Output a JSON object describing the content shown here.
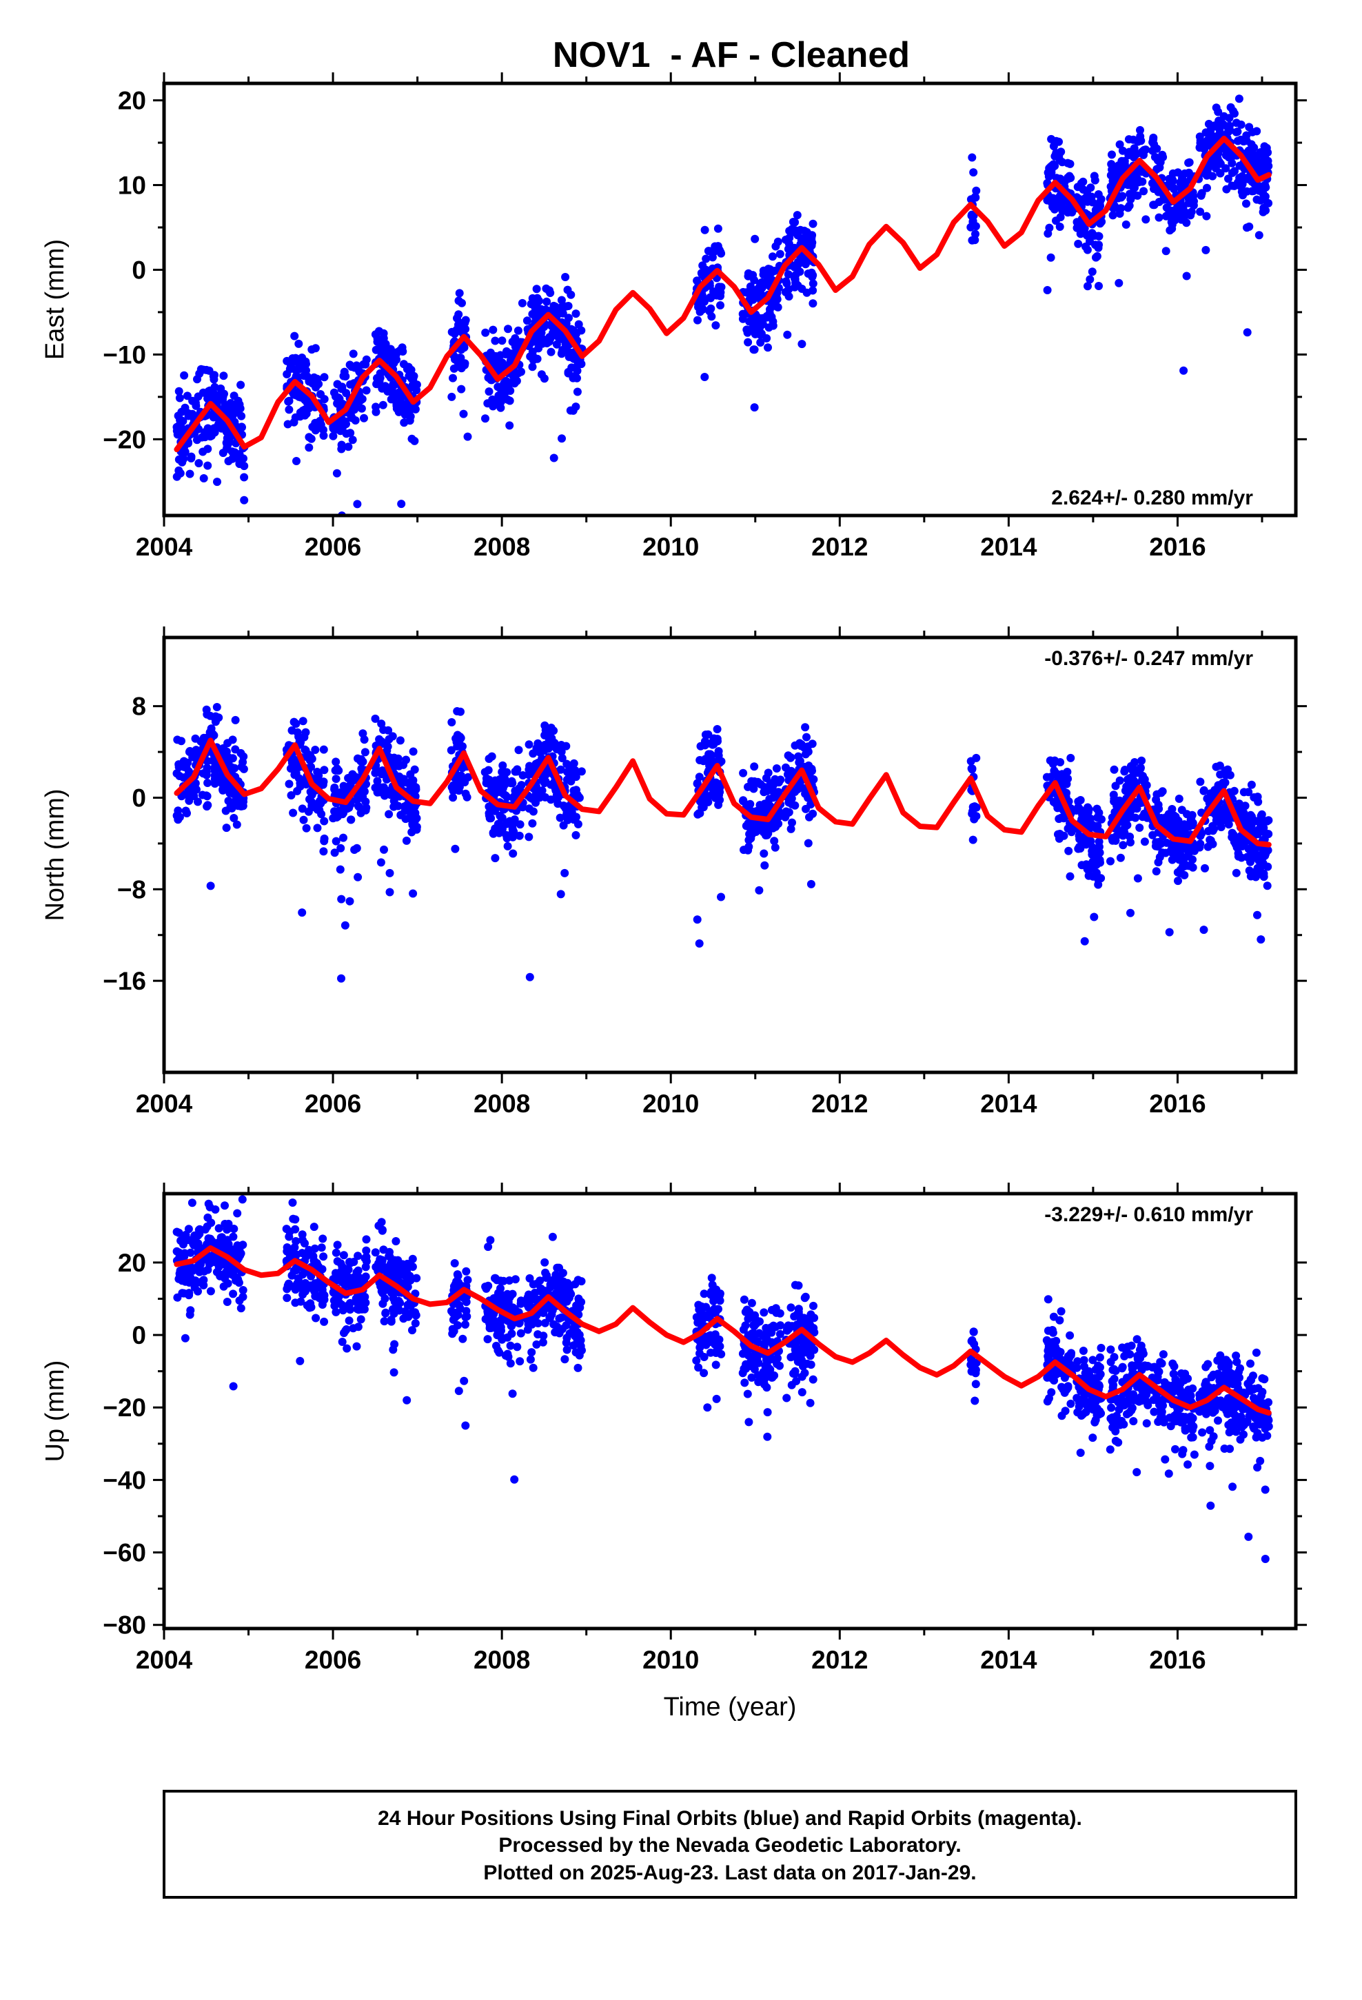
{
  "page_title": "NOV1  - AF - Cleaned",
  "chart_data": [
    {
      "type": "scatter",
      "panel": "east",
      "ylabel": "East (mm)",
      "xlabel": "",
      "xlim": [
        2004.0,
        2017.4
      ],
      "ylim": [
        -29,
        22
      ],
      "xticks": [
        2004,
        2006,
        2008,
        2010,
        2012,
        2014,
        2016
      ],
      "xtick_labels": [
        "2004",
        "2006",
        "2008",
        "2010",
        "2012",
        "2014",
        "2016"
      ],
      "yticks": [
        20,
        10,
        0,
        -10,
        -20
      ],
      "ytick_labels": [
        "20",
        "10",
        "0",
        "−10",
        "−20"
      ],
      "rate_text": "2.624+/- 0.280 mm/yr",
      "rate_position": "bottom-right",
      "grid": false,
      "points_color": "#0000ff",
      "model_color": "#ff0000",
      "data_segments": [
        [
          2004.15,
          2004.95
        ],
        [
          2005.45,
          2005.9
        ],
        [
          2006.0,
          2006.4
        ],
        [
          2006.5,
          2007.0
        ],
        [
          2007.4,
          2007.6
        ],
        [
          2007.8,
          2008.25
        ],
        [
          2008.3,
          2008.95
        ],
        [
          2010.3,
          2010.6
        ],
        [
          2010.85,
          2011.3
        ],
        [
          2011.35,
          2011.7
        ],
        [
          2013.55,
          2013.62
        ],
        [
          2014.45,
          2014.75
        ],
        [
          2014.8,
          2015.1
        ],
        [
          2015.2,
          2015.65
        ],
        [
          2015.7,
          2016.2
        ],
        [
          2016.25,
          2017.08
        ]
      ],
      "series": [
        {
          "name": "",
          "kind": "model",
          "x": [
            2004.15,
            2004.35,
            2004.55,
            2004.75,
            2004.95,
            2005.15,
            2005.35,
            2005.55,
            2005.75,
            2005.95,
            2006.15,
            2006.35,
            2006.55,
            2006.75,
            2006.95,
            2007.15,
            2007.35,
            2007.55,
            2007.75,
            2007.95,
            2008.15,
            2008.35,
            2008.55,
            2008.75,
            2008.95,
            2009.15,
            2009.35,
            2009.55,
            2009.75,
            2009.95,
            2010.15,
            2010.35,
            2010.55,
            2010.75,
            2010.95,
            2011.15,
            2011.35,
            2011.55,
            2011.75,
            2011.95,
            2012.15,
            2012.35,
            2012.55,
            2012.75,
            2012.95,
            2013.15,
            2013.35,
            2013.55,
            2013.75,
            2013.95,
            2014.15,
            2014.35,
            2014.55,
            2014.75,
            2014.95,
            2015.15,
            2015.35,
            2015.55,
            2015.75,
            2015.95,
            2016.15,
            2016.35,
            2016.55,
            2016.75,
            2016.95,
            2017.08
          ],
          "values": [
            -21.2,
            -18.5,
            -15.8,
            -17.8,
            -20.9,
            -19.8,
            -15.6,
            -13.2,
            -14.9,
            -18.0,
            -16.5,
            -12.7,
            -10.7,
            -12.6,
            -15.6,
            -13.9,
            -10.2,
            -7.9,
            -10.1,
            -12.9,
            -11.3,
            -7.3,
            -5.3,
            -7.2,
            -10.2,
            -8.4,
            -4.7,
            -2.7,
            -4.6,
            -7.5,
            -5.7,
            -2.0,
            -0.1,
            -2.0,
            -5.0,
            -3.3,
            0.5,
            2.6,
            0.6,
            -2.4,
            -0.8,
            3.0,
            5.1,
            3.2,
            0.2,
            1.8,
            5.6,
            7.7,
            5.7,
            2.8,
            4.4,
            8.2,
            10.3,
            8.3,
            5.4,
            7.0,
            10.8,
            12.9,
            10.9,
            8.0,
            9.6,
            13.4,
            15.5,
            13.5,
            10.6,
            11.2
          ]
        }
      ]
    },
    {
      "type": "scatter",
      "panel": "north",
      "ylabel": "North (mm)",
      "xlabel": "",
      "xlim": [
        2004.0,
        2017.4
      ],
      "ylim": [
        -24,
        14
      ],
      "xticks": [
        2004,
        2006,
        2008,
        2010,
        2012,
        2014,
        2016
      ],
      "xtick_labels": [
        "2004",
        "2006",
        "2008",
        "2010",
        "2012",
        "2014",
        "2016"
      ],
      "yticks": [
        8,
        0,
        -8,
        -16
      ],
      "ytick_labels": [
        "8",
        "0",
        "−8",
        "−16"
      ],
      "rate_text": "-0.376+/- 0.247 mm/yr",
      "rate_position": "top-right",
      "grid": false,
      "points_color": "#0000ff",
      "model_color": "#ff0000",
      "data_segments": [
        [
          2004.15,
          2004.95
        ],
        [
          2005.45,
          2005.9
        ],
        [
          2006.0,
          2006.4
        ],
        [
          2006.5,
          2007.0
        ],
        [
          2007.4,
          2007.6
        ],
        [
          2007.8,
          2008.25
        ],
        [
          2008.3,
          2008.95
        ],
        [
          2010.3,
          2010.6
        ],
        [
          2010.85,
          2011.3
        ],
        [
          2011.35,
          2011.7
        ],
        [
          2013.55,
          2013.62
        ],
        [
          2014.45,
          2014.75
        ],
        [
          2014.8,
          2015.1
        ],
        [
          2015.2,
          2015.65
        ],
        [
          2015.7,
          2016.2
        ],
        [
          2016.25,
          2017.08
        ]
      ],
      "series": [
        {
          "name": "",
          "kind": "model",
          "x": [
            2004.15,
            2004.35,
            2004.55,
            2004.75,
            2004.95,
            2005.15,
            2005.35,
            2005.55,
            2005.75,
            2005.95,
            2006.15,
            2006.35,
            2006.55,
            2006.75,
            2006.95,
            2007.15,
            2007.35,
            2007.55,
            2007.75,
            2007.95,
            2008.15,
            2008.35,
            2008.55,
            2008.75,
            2008.95,
            2009.15,
            2009.35,
            2009.55,
            2009.75,
            2009.95,
            2010.15,
            2010.35,
            2010.55,
            2010.75,
            2010.95,
            2011.15,
            2011.35,
            2011.55,
            2011.75,
            2011.95,
            2012.15,
            2012.35,
            2012.55,
            2012.75,
            2012.95,
            2013.15,
            2013.35,
            2013.55,
            2013.75,
            2013.95,
            2014.15,
            2014.35,
            2014.55,
            2014.75,
            2014.95,
            2015.15,
            2015.35,
            2015.55,
            2015.75,
            2015.95,
            2016.15,
            2016.35,
            2016.55,
            2016.75,
            2016.95,
            2017.08
          ],
          "values": [
            0.4,
            1.8,
            5.0,
            2.0,
            0.3,
            0.8,
            2.5,
            4.6,
            1.2,
            -0.1,
            -0.4,
            1.6,
            4.3,
            0.9,
            -0.3,
            -0.5,
            1.4,
            3.9,
            0.6,
            -0.6,
            -0.8,
            1.2,
            3.5,
            0.2,
            -1.0,
            -1.2,
            0.9,
            3.2,
            -0.1,
            -1.4,
            -1.5,
            0.6,
            2.8,
            -0.5,
            -1.7,
            -1.9,
            0.3,
            2.4,
            -0.9,
            -2.1,
            -2.3,
            -0.1,
            2.0,
            -1.3,
            -2.5,
            -2.6,
            -0.4,
            1.7,
            -1.6,
            -2.8,
            -3.0,
            -0.7,
            1.3,
            -2.0,
            -3.2,
            -3.4,
            -1.1,
            0.9,
            -2.4,
            -3.6,
            -3.8,
            -1.4,
            0.6,
            -2.8,
            -4.0,
            -4.1
          ]
        }
      ]
    },
    {
      "type": "scatter",
      "panel": "up",
      "ylabel": "Up (mm)",
      "xlabel": "Time (year)",
      "xlim": [
        2004.0,
        2017.4
      ],
      "ylim": [
        -81,
        39
      ],
      "xticks": [
        2004,
        2006,
        2008,
        2010,
        2012,
        2014,
        2016
      ],
      "xtick_labels": [
        "2004",
        "2006",
        "2008",
        "2010",
        "2012",
        "2014",
        "2016"
      ],
      "yticks": [
        20,
        0,
        -20,
        -40,
        -60,
        -80
      ],
      "ytick_labels": [
        "20",
        "0",
        "−20",
        "−40",
        "−60",
        "−80"
      ],
      "rate_text": "-3.229+/- 0.610 mm/yr",
      "rate_position": "top-right",
      "grid": false,
      "points_color": "#0000ff",
      "model_color": "#ff0000",
      "data_segments": [
        [
          2004.15,
          2004.95
        ],
        [
          2005.45,
          2005.9
        ],
        [
          2006.0,
          2006.4
        ],
        [
          2006.5,
          2007.0
        ],
        [
          2007.4,
          2007.6
        ],
        [
          2007.8,
          2008.25
        ],
        [
          2008.3,
          2008.95
        ],
        [
          2010.3,
          2010.6
        ],
        [
          2010.85,
          2011.3
        ],
        [
          2011.35,
          2011.7
        ],
        [
          2013.55,
          2013.62
        ],
        [
          2014.45,
          2014.75
        ],
        [
          2014.8,
          2015.1
        ],
        [
          2015.2,
          2015.65
        ],
        [
          2015.7,
          2016.2
        ],
        [
          2016.25,
          2017.08
        ]
      ],
      "series": [
        {
          "name": "",
          "kind": "model",
          "x": [
            2004.15,
            2004.35,
            2004.55,
            2004.75,
            2004.95,
            2005.15,
            2005.35,
            2005.55,
            2005.75,
            2005.95,
            2006.15,
            2006.35,
            2006.55,
            2006.75,
            2006.95,
            2007.15,
            2007.35,
            2007.55,
            2007.75,
            2007.95,
            2008.15,
            2008.35,
            2008.55,
            2008.75,
            2008.95,
            2009.15,
            2009.35,
            2009.55,
            2009.75,
            2009.95,
            2010.15,
            2010.35,
            2010.55,
            2010.75,
            2010.95,
            2011.15,
            2011.35,
            2011.55,
            2011.75,
            2011.95,
            2012.15,
            2012.35,
            2012.55,
            2012.75,
            2012.95,
            2013.15,
            2013.35,
            2013.55,
            2013.75,
            2013.95,
            2014.15,
            2014.35,
            2014.55,
            2014.75,
            2014.95,
            2015.15,
            2015.35,
            2015.55,
            2015.75,
            2015.95,
            2016.15,
            2016.35,
            2016.55,
            2016.75,
            2016.95,
            2017.08
          ],
          "values": [
            19.5,
            20.5,
            24.0,
            21.5,
            18.0,
            16.5,
            17.0,
            20.5,
            18.0,
            14.5,
            11.5,
            12.5,
            16.5,
            13.5,
            10.0,
            8.5,
            9.0,
            12.5,
            10.0,
            7.0,
            4.5,
            6.0,
            10.5,
            6.5,
            3.0,
            1.0,
            3.0,
            7.5,
            3.5,
            0.0,
            -2.0,
            0.5,
            4.5,
            1.0,
            -3.0,
            -5.0,
            -2.0,
            1.5,
            -2.5,
            -6.0,
            -7.5,
            -5.0,
            -1.5,
            -5.5,
            -9.0,
            -11.0,
            -8.5,
            -4.5,
            -8.0,
            -11.5,
            -14.0,
            -11.5,
            -7.5,
            -11.0,
            -15.0,
            -17.0,
            -15.0,
            -11.0,
            -14.5,
            -18.0,
            -20.0,
            -18.0,
            -14.5,
            -17.5,
            -20.5,
            -21.5
          ]
        }
      ]
    }
  ],
  "footer": {
    "line1": "24 Hour Positions Using Final Orbits (blue) and Rapid Orbits (magenta).",
    "line2": "Processed by the Nevada Geodetic Laboratory.",
    "line3": "Plotted on 2025-Aug-23. Last data on 2017-Jan-29."
  }
}
